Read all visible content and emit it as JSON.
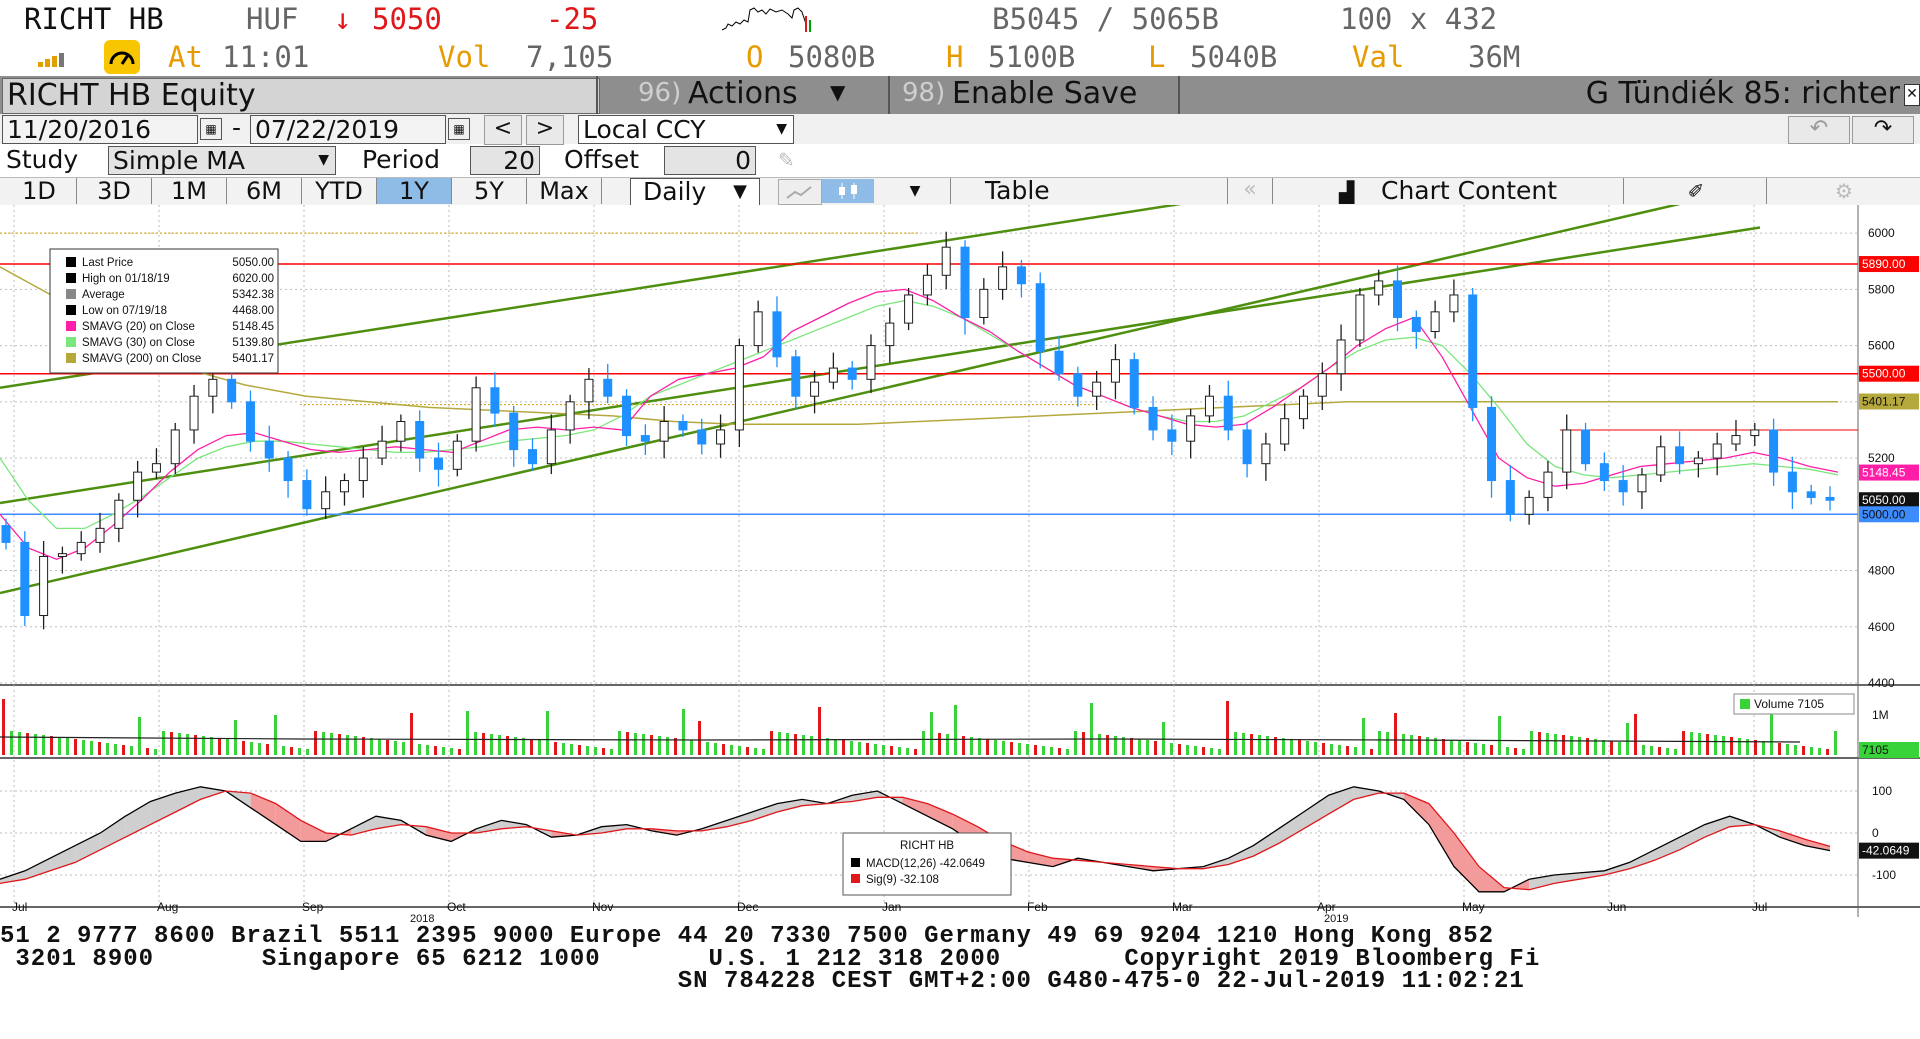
{
  "quote": {
    "ticker": "RICHT HB",
    "ccy": "HUF",
    "arrow": "↓",
    "last": "5050",
    "change": "-25",
    "bid_ask": "B5045 / 5065B",
    "size": "100 x 432",
    "at_label": "At",
    "time": "11:01",
    "vol_label": "Vol",
    "vol": "7,105",
    "open_label": "O",
    "open": "5080B",
    "high_label": "H",
    "high": "5100B",
    "low_label": "L",
    "low": "5040B",
    "val_label": "Val",
    "val": "36M"
  },
  "toolbar": {
    "security": "RICHT HB Equity",
    "actions_num": "96)",
    "actions_label": "Actions",
    "save_num": "98)",
    "save_label": "Enable Save",
    "user": "G Tündiék 85: richter"
  },
  "range": {
    "start": "11/20/2016",
    "dash": "-",
    "end": "07/22/2019",
    "currency": "Local CCY"
  },
  "study": {
    "label": "Study",
    "value": "Simple MA",
    "period_label": "Period",
    "period": "20",
    "offset_label": "Offset",
    "offset": "0"
  },
  "timeframes": [
    "1D",
    "3D",
    "1M",
    "6M",
    "YTD",
    "1Y",
    "5Y",
    "Max"
  ],
  "active_timeframe": "1Y",
  "frequency": "Daily",
  "table_label": "Table",
  "chart_content_label": "Chart Content",
  "colors": {
    "up": "#1e1e1e",
    "down": "#1e90ff",
    "sma20": "#ff1ea8",
    "sma30": "#7be67b",
    "sma200": "#b5a93e",
    "channel": "#4f8f10",
    "resistance": "#ff0000",
    "support": "#3c8cff"
  },
  "chart_data": {
    "type": "candlestick",
    "y_range": [
      4400,
      6100
    ],
    "y_ticks": [
      "6000",
      "5800",
      "5600",
      "5400",
      "5200",
      "5000",
      "4800",
      "4600",
      "4400"
    ],
    "x_ticks": [
      "Jul",
      "Aug",
      "Sep",
      "Oct",
      "Nov",
      "Dec",
      "Jan",
      "Feb",
      "Mar",
      "Apr",
      "May",
      "Jun",
      "Jul"
    ],
    "year_labels": [
      "2018",
      "2019"
    ],
    "legend": [
      {
        "label": "Last Price",
        "value": "5050.00"
      },
      {
        "label": "High on 01/18/19",
        "value": "6020.00"
      },
      {
        "label": "Average",
        "value": "5342.38"
      },
      {
        "label": "Low on 07/19/18",
        "value": "4468.00"
      },
      {
        "label": "SMAVG (20)  on Close",
        "value": "5148.45"
      },
      {
        "label": "SMAVG (30)  on Close",
        "value": "5139.80"
      },
      {
        "label": "SMAVG (200)  on Close",
        "value": "5401.17"
      }
    ],
    "horizontal_lines": [
      {
        "value": 5890,
        "label": "5890.00"
      },
      {
        "value": 5500,
        "label": "5500.00"
      },
      {
        "value": 5000,
        "label": "5000.00"
      }
    ],
    "right_labels": [
      {
        "value": 5401.17,
        "label": "5401.17"
      },
      {
        "value": 5148.45,
        "label": "5148.45"
      },
      {
        "value": 5050,
        "label": "5050.00"
      }
    ],
    "close_approx": [
      4900,
      4640,
      4850,
      4860,
      4900,
      4950,
      5050,
      5150,
      5180,
      5300,
      5420,
      5480,
      5400,
      5260,
      5200,
      5120,
      5020,
      5080,
      5120,
      5200,
      5260,
      5330,
      5200,
      5160,
      5260,
      5450,
      5360,
      5230,
      5180,
      5300,
      5400,
      5480,
      5420,
      5280,
      5260,
      5330,
      5300,
      5250,
      5300,
      5600,
      5720,
      5560,
      5420,
      5470,
      5520,
      5480,
      5600,
      5680,
      5780,
      5850,
      5950,
      5700,
      5800,
      5880,
      5820,
      5580,
      5500,
      5420,
      5470,
      5550,
      5380,
      5300,
      5260,
      5350,
      5420,
      5300,
      5180,
      5250,
      5340,
      5420,
      5500,
      5620,
      5780,
      5830,
      5700,
      5650,
      5720,
      5780,
      5380,
      5120,
      5000,
      5060,
      5150,
      5300,
      5180,
      5120,
      5080,
      5140,
      5240,
      5180,
      5200,
      5250,
      5280,
      5300,
      5150,
      5080,
      5060,
      5050
    ],
    "sma20_approx": [
      5000,
      4880,
      4840,
      4880,
      4960,
      5050,
      5150,
      5230,
      5280,
      5290,
      5260,
      5230,
      5220,
      5230,
      5240,
      5230,
      5220,
      5260,
      5300,
      5310,
      5300,
      5310,
      5300,
      5420,
      5480,
      5500,
      5520,
      5560,
      5650,
      5700,
      5750,
      5790,
      5800,
      5760,
      5700,
      5650,
      5580,
      5520,
      5460,
      5420,
      5380,
      5350,
      5320,
      5310,
      5320,
      5380,
      5450,
      5520,
      5600,
      5660,
      5700,
      5560,
      5380,
      5200,
      5130,
      5100,
      5110,
      5140,
      5170,
      5180,
      5190,
      5200,
      5220,
      5200,
      5170,
      5150
    ],
    "sma30_approx": [
      5200,
      5050,
      4950,
      4950,
      5000,
      5060,
      5130,
      5200,
      5240,
      5260,
      5260,
      5250,
      5240,
      5230,
      5220,
      5220,
      5230,
      5240,
      5260,
      5270,
      5280,
      5300,
      5350,
      5420,
      5460,
      5500,
      5540,
      5580,
      5620,
      5660,
      5700,
      5740,
      5760,
      5740,
      5700,
      5640,
      5580,
      5520,
      5460,
      5420,
      5380,
      5350,
      5330,
      5330,
      5350,
      5400,
      5450,
      5520,
      5580,
      5620,
      5630,
      5600,
      5500,
      5380,
      5250,
      5170,
      5140,
      5130,
      5140,
      5150,
      5160,
      5170,
      5180,
      5170,
      5160,
      5140
    ],
    "sma200_approx": [
      5880,
      5760,
      5620,
      5520,
      5460,
      5420,
      5400,
      5380,
      5370,
      5360,
      5350,
      5330,
      5320,
      5320,
      5320,
      5330,
      5340,
      5350,
      5360,
      5370,
      5380,
      5390,
      5400,
      5400,
      5400,
      5400,
      5400,
      5400,
      5400,
      5400,
      5400
    ],
    "volume": {
      "label": "Volume",
      "value": "7105",
      "tick": "1M"
    },
    "macd": {
      "y_ticks": [
        "100",
        "0",
        "-100"
      ],
      "legend_title": "RICHT HB",
      "legend": [
        {
          "label": "MACD(12,26)",
          "value": "-42.0649"
        },
        {
          "label": "Sig(9)",
          "value": "-32.108"
        }
      ],
      "last": "-42.0649",
      "macd_approx": [
        -110,
        -90,
        -60,
        -30,
        0,
        40,
        75,
        95,
        110,
        100,
        60,
        20,
        -20,
        -20,
        10,
        40,
        30,
        -5,
        -20,
        10,
        30,
        20,
        -10,
        -5,
        15,
        20,
        5,
        -5,
        10,
        30,
        50,
        70,
        80,
        70,
        90,
        100,
        70,
        40,
        10,
        -30,
        -60,
        -70,
        -80,
        -60,
        -70,
        -80,
        -90,
        -85,
        -80,
        -60,
        -30,
        10,
        50,
        90,
        110,
        100,
        80,
        20,
        -80,
        -140,
        -140,
        -110,
        -100,
        -95,
        -90,
        -70,
        -40,
        -10,
        20,
        40,
        20,
        -10,
        -30,
        -42
      ],
      "sig_approx": [
        -120,
        -110,
        -90,
        -70,
        -40,
        -10,
        20,
        50,
        80,
        100,
        95,
        70,
        30,
        0,
        -5,
        10,
        20,
        15,
        0,
        0,
        10,
        15,
        5,
        -5,
        0,
        10,
        10,
        5,
        5,
        15,
        30,
        50,
        65,
        70,
        75,
        85,
        85,
        70,
        45,
        15,
        -20,
        -45,
        -60,
        -65,
        -70,
        -75,
        -80,
        -85,
        -85,
        -75,
        -55,
        -25,
        10,
        45,
        80,
        95,
        95,
        70,
        0,
        -80,
        -130,
        -135,
        -120,
        -110,
        -100,
        -85,
        -65,
        -40,
        -10,
        15,
        20,
        5,
        -15,
        -32
      ]
    }
  },
  "footer": {
    "line1": "51 2 9777 8600 Brazil 5511 2395 9000 Europe 44 20 7330 7500 Germany 49 69 9204 1210 Hong Kong 852",
    "line2": " 3201 8900       Singapore 65 6212 1000       U.S. 1 212 318 2000        Copyright 2019 Bloomberg Fi",
    "line3": "                                            SN 784228 CEST GMT+2:00 G480-475-0 22-Jul-2019 11:02:21"
  }
}
